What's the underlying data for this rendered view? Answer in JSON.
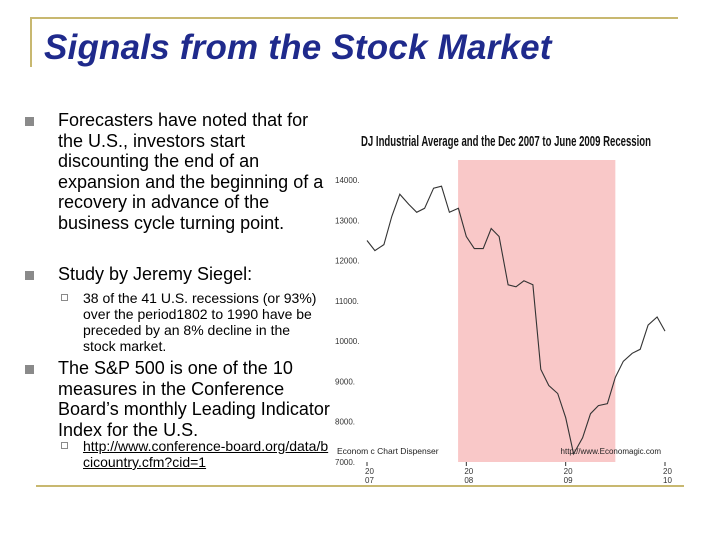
{
  "slide": {
    "title": "Signals from the Stock Market",
    "bullets": [
      "Forecasters have noted that for the U.S., investors start discounting  the end of an expansion and the beginning of a recovery in advance of the business cycle turning point.",
      "Study by Jeremy Siegel:",
      "The S&P 500 is one of the 10 measures in the Conference Board’s monthly Leading Indicator Index for the U.S."
    ],
    "sub_bullets": [
      "38 of the 41 U.S. recessions (or 93%) over the period1802 to 1990 have be preceded by an 8% decline in the stock market.",
      "http://www.conference-board.org/data/bcicountry.cfm?cid=1"
    ]
  },
  "chart_data": {
    "type": "line",
    "title": "DJ Industrial Average and the Dec 2007 to June 2009 Recession",
    "y_tick_labels": [
      "14000.",
      "13000.",
      "12000.",
      "11000.",
      "10000.",
      "9000.",
      "8000.",
      "7000."
    ],
    "x_tick_labels": [
      "2007",
      "2008",
      "2009",
      "2010"
    ],
    "ylim": [
      7000,
      14500
    ],
    "recession": {
      "start": 2007.917,
      "end": 2009.5,
      "color": "#f9c8c8"
    },
    "line_color": "#333333",
    "series": [
      {
        "x": [
          2007.0,
          2007.08,
          2007.17,
          2007.25,
          2007.33,
          2007.42,
          2007.5,
          2007.58,
          2007.67,
          2007.75,
          2007.83,
          2007.92,
          2008.0,
          2008.08,
          2008.17,
          2008.25,
          2008.33,
          2008.42,
          2008.5,
          2008.58,
          2008.67,
          2008.75,
          2008.83,
          2008.92,
          2009.0,
          2009.08,
          2009.17,
          2009.25,
          2009.33,
          2009.42,
          2009.5,
          2009.58,
          2009.67,
          2009.75,
          2009.83,
          2009.92,
          2010.0
        ],
        "y": [
          12500,
          12250,
          12400,
          13100,
          13650,
          13400,
          13200,
          13300,
          13800,
          13850,
          13200,
          13300,
          12600,
          12300,
          12300,
          12800,
          12600,
          11400,
          11350,
          11500,
          11400,
          9300,
          8900,
          8700,
          8100,
          7200,
          7600,
          8200,
          8400,
          8450,
          9100,
          9500,
          9700,
          9800,
          10400,
          10600,
          10250
        ]
      }
    ],
    "footer_left": "Econom c Chart Dispenser",
    "footer_right": "http://www.Economagic.com"
  }
}
